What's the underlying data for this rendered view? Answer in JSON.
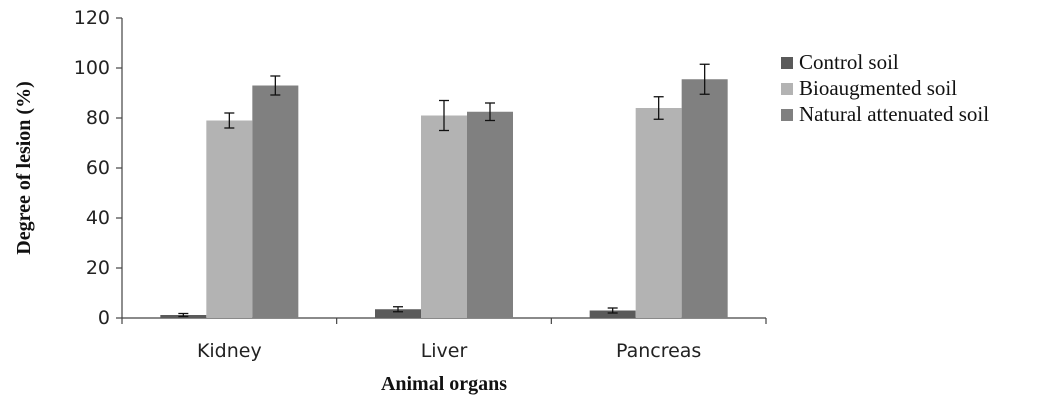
{
  "chart_data": {
    "type": "bar",
    "categories": [
      "Kidney",
      "Liver",
      "Pancreas"
    ],
    "series": [
      {
        "name": "Control soil",
        "values": [
          1.2,
          3.5,
          3.0
        ],
        "errors": [
          0.6,
          1.0,
          1.0
        ],
        "color": "#5a5a5a"
      },
      {
        "name": "Bioaugmented soil",
        "values": [
          79,
          81,
          84
        ],
        "errors": [
          3,
          6,
          4.5
        ],
        "color": "#b3b3b3"
      },
      {
        "name": "Natural attenuated soil",
        "values": [
          93,
          82.5,
          95.5
        ],
        "errors": [
          3.8,
          3.5,
          6
        ],
        "color": "#808080"
      }
    ],
    "xlabel": "Animal organs",
    "ylabel": "Degree of lesion (%)",
    "ylim": [
      0,
      120
    ],
    "yticks": [
      0,
      20,
      40,
      60,
      80,
      100,
      120
    ],
    "grid": false,
    "legend": "right",
    "error_bars": true
  }
}
